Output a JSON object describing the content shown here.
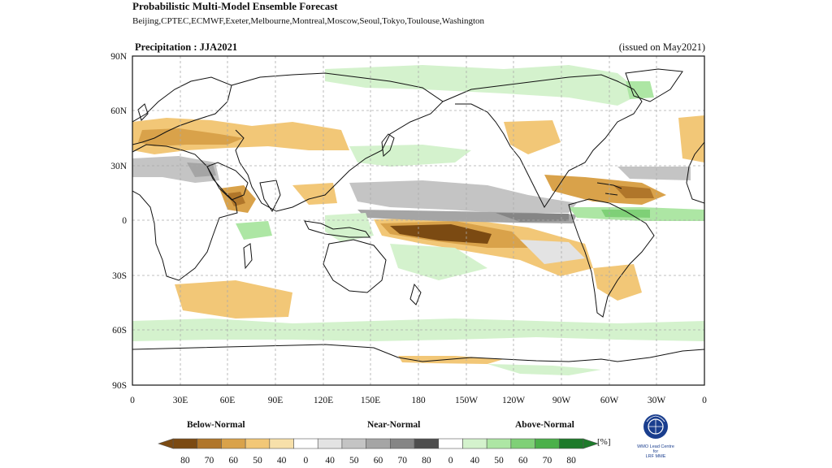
{
  "header": {
    "title": "Probabilistic Multi-Model Ensemble Forecast",
    "subtitle": "Beijing,CPTEC,ECMWF,Exeter,Melbourne,Montreal,Moscow,Seoul,Tokyo,Toulouse,Washington"
  },
  "panel": {
    "variable": "Precipitation : JJA2021",
    "issued": "(issued on May2021)"
  },
  "axes": {
    "lat_labels": [
      "90N",
      "60N",
      "30N",
      "0",
      "30S",
      "60S",
      "90S"
    ],
    "lon_labels": [
      "0",
      "30E",
      "60E",
      "90E",
      "120E",
      "150E",
      "180",
      "150W",
      "120W",
      "90W",
      "60W",
      "30W",
      "0"
    ]
  },
  "legend": {
    "below_label": "Below-Normal",
    "near_label": "Near-Normal",
    "above_label": "Above-Normal",
    "unit": "[%]",
    "ticks": [
      "80",
      "70",
      "60",
      "50",
      "40",
      "0",
      "40",
      "50",
      "60",
      "70",
      "80",
      "0",
      "40",
      "50",
      "60",
      "70",
      "80"
    ],
    "colors": [
      "#7b4a12",
      "#b0762a",
      "#d9a24a",
      "#f2c777",
      "#f7e0aa",
      "#ffffff",
      "#e3e3e3",
      "#c4c4c4",
      "#a5a5a5",
      "#858585",
      "#4e4e4e",
      "#ffffff",
      "#d4f2cd",
      "#ade6a4",
      "#7fd077",
      "#4bb04a",
      "#1d7a2a"
    ]
  },
  "logo": {
    "name": "wmo-emblem",
    "caption_line1": "WMO Lead Centre for",
    "caption_line2": "LRF MME"
  },
  "colors": {
    "below_normal": "#d9a24a",
    "near_normal": "#c4c4c4",
    "above_normal": "#ade6a4"
  }
}
